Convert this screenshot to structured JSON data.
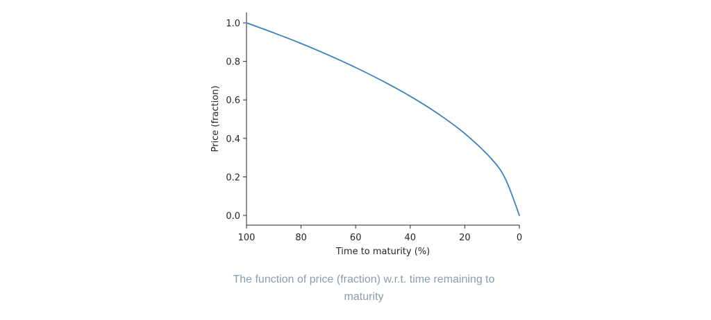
{
  "chart_data": {
    "type": "line",
    "title": "",
    "xlabel": "Time to maturity (%)",
    "ylabel": "Price (fraction)",
    "xlim": [
      100,
      0
    ],
    "ylim": [
      0.0,
      1.0
    ],
    "x_inverted": true,
    "grid": false,
    "x_ticks": [
      "100",
      "80",
      "60",
      "40",
      "20",
      "0"
    ],
    "y_ticks": [
      "0.0",
      "0.2",
      "0.4",
      "0.6",
      "0.8",
      "1.0"
    ],
    "line_color": "#3a80c0",
    "series": [
      {
        "x": [
          100,
          90,
          80,
          70,
          60,
          50,
          40,
          30,
          20,
          10,
          5,
          0
        ],
        "values": [
          1.0,
          0.948,
          0.893,
          0.833,
          0.768,
          0.697,
          0.619,
          0.53,
          0.425,
          0.29,
          0.186,
          0.0
        ]
      }
    ]
  },
  "caption": "The function of price (fraction) w.r.t. time remaining to maturity"
}
